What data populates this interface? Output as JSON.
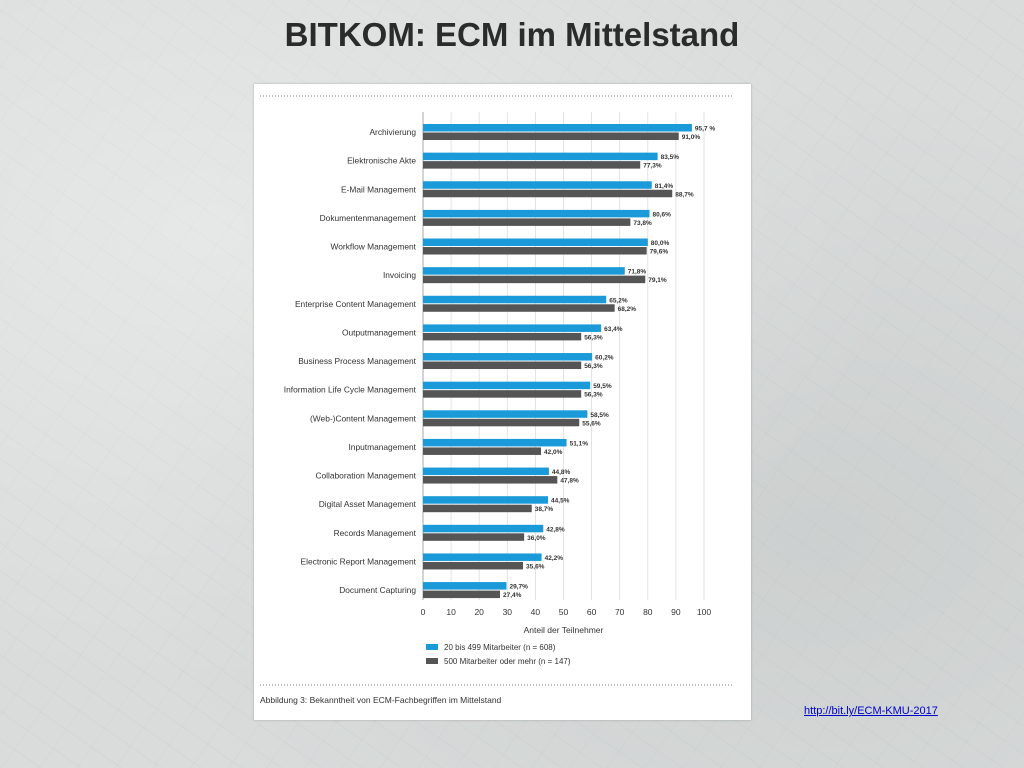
{
  "slide": {
    "title": "BITKOM: ECM im Mittelstand",
    "link": "http://bit.ly/ECM-KMU-2017"
  },
  "colors": {
    "series1": "#1a9ad8",
    "series2": "#555555",
    "grid": "#dcdcdc",
    "text": "#333333"
  },
  "chart_data": {
    "type": "bar",
    "orientation": "horizontal",
    "caption": "Abbildung 3: Bekanntheit von ECM-Fachbegriffen im Mittelstand",
    "xlabel": "Anteil der Teilnehmer",
    "xlim": [
      0,
      100
    ],
    "xticks": [
      "0",
      "10",
      "20",
      "30",
      "40",
      "50",
      "60",
      "70",
      "80",
      "90",
      "100"
    ],
    "grid": true,
    "legend_position": "bottom-left",
    "categories": [
      "Archivierung",
      "Elektronische Akte",
      "E-Mail Management",
      "Dokumentenmanagement",
      "Workflow Management",
      "Invoicing",
      "Enterprise Content Management",
      "Outputmanagement",
      "Business Process Management",
      "Information Life Cycle Management",
      "(Web-)Content Management",
      "Inputmanagement",
      "Collaboration Management",
      "Digital Asset Management",
      "Records Management",
      "Electronic Report Management",
      "Document Capturing"
    ],
    "series": [
      {
        "name": "20 bis 499 Mitarbeiter (n = 608)",
        "values": [
          95.7,
          83.5,
          81.4,
          80.6,
          80.0,
          71.8,
          65.2,
          63.4,
          60.2,
          59.5,
          58.5,
          51.1,
          44.8,
          44.5,
          42.8,
          42.2,
          29.7
        ],
        "labels": [
          "95,7 %",
          "83,5%",
          "81,4%",
          "80,6%",
          "80,0%",
          "71,8%",
          "65,2%",
          "63,4%",
          "60,2%",
          "59,5%",
          "58,5%",
          "51,1%",
          "44,8%",
          "44,5%",
          "42,8%",
          "42,2%",
          "29,7%"
        ]
      },
      {
        "name": "500 Mitarbeiter oder mehr (n = 147)",
        "values": [
          91.0,
          77.3,
          88.7,
          73.8,
          79.6,
          79.1,
          68.2,
          56.3,
          56.3,
          56.3,
          55.6,
          42.0,
          47.8,
          38.7,
          36.0,
          35.6,
          27.4
        ],
        "labels": [
          "91,0%",
          "77,3%",
          "88,7%",
          "73,8%",
          "79,6%",
          "79,1%",
          "68,2%",
          "56,3%",
          "56,3%",
          "56,3%",
          "55,6%",
          "42,0%",
          "47,8%",
          "38,7%",
          "36,0%",
          "35,6%",
          "27,4%"
        ]
      }
    ]
  }
}
